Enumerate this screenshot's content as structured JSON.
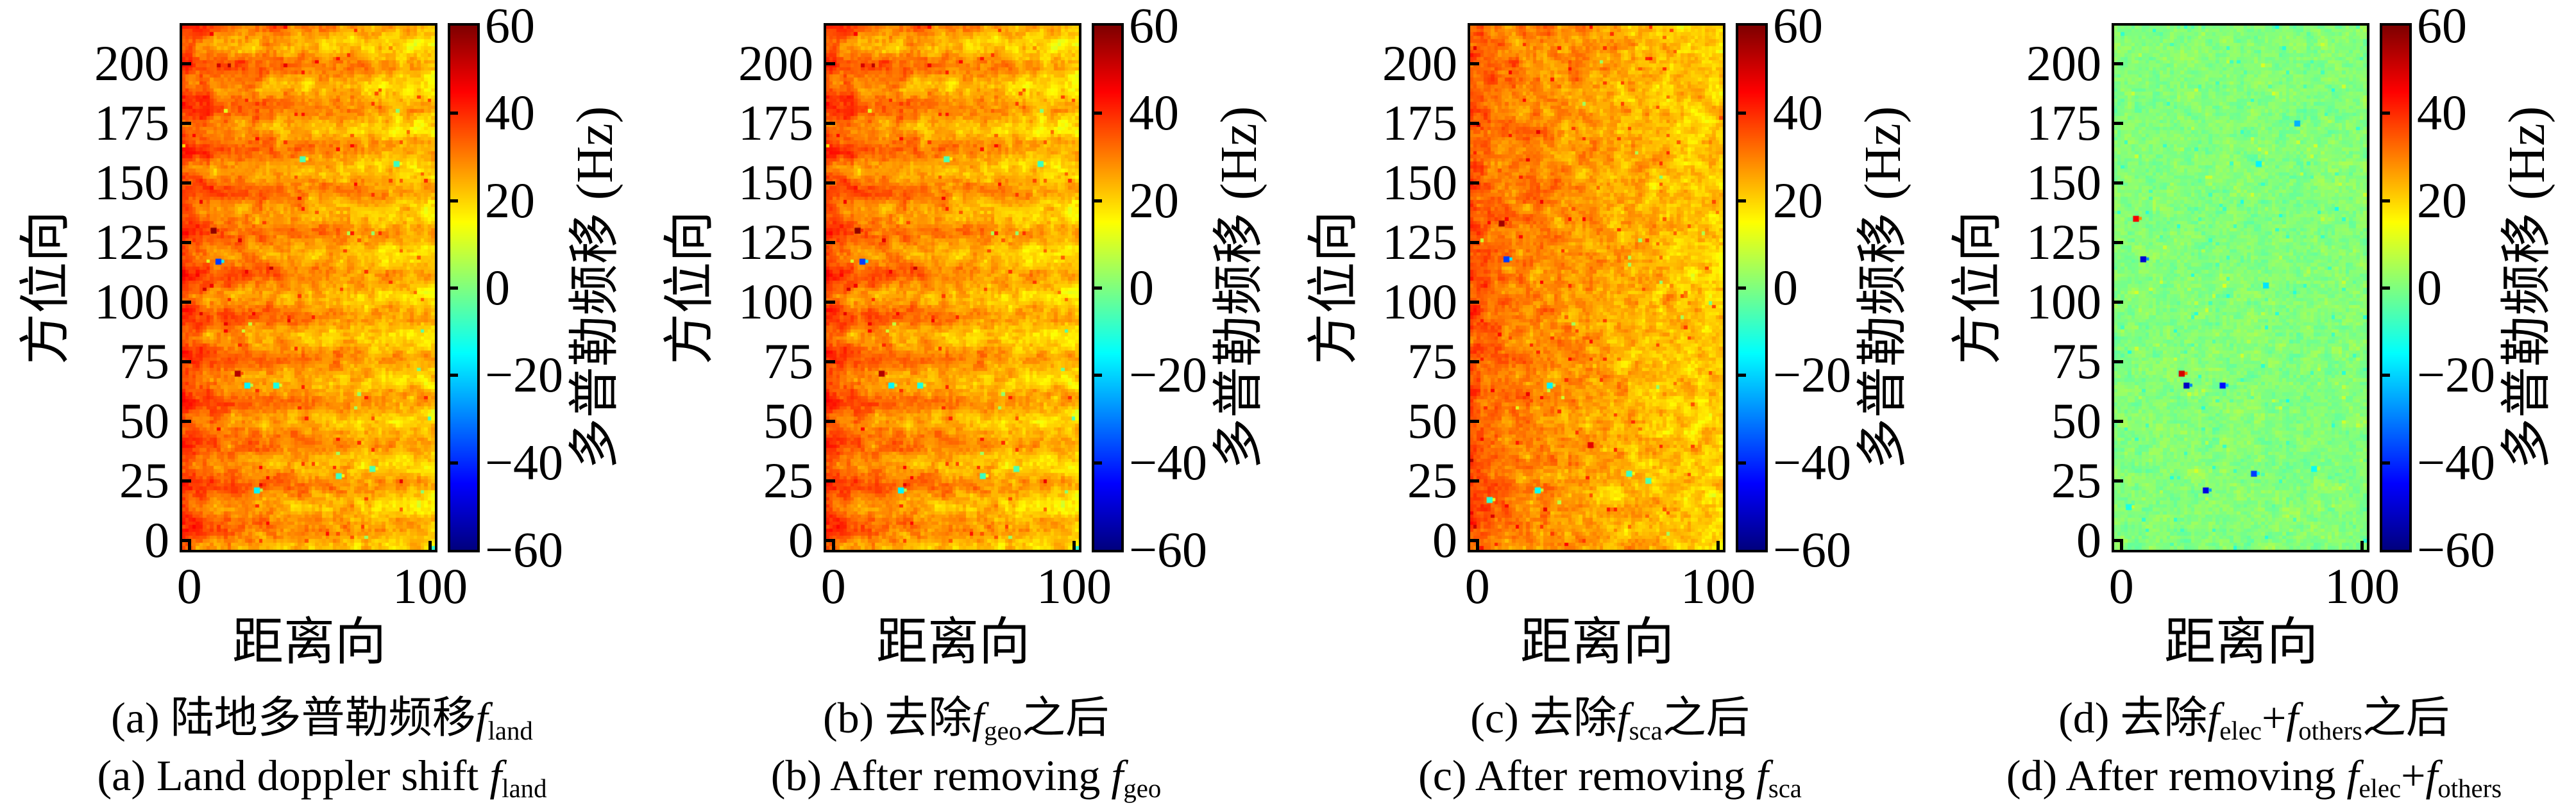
{
  "page": {
    "background": "#ffffff",
    "figure_type": "four-panel scientific heatmap figure"
  },
  "colors": {
    "axis": "#000000",
    "colormap": "jet",
    "colormap_ends": {
      "low": "#000080",
      "high": "#800000"
    }
  },
  "chart_data": [
    {
      "type": "heatmap",
      "panel": "a",
      "xlabel": "距离向",
      "ylabel": "方位向",
      "xticks": [
        0,
        100
      ],
      "yticks": [
        0,
        25,
        50,
        75,
        100,
        125,
        150,
        175,
        200
      ],
      "xlim": [
        -3,
        102
      ],
      "ylim": [
        -4,
        216
      ],
      "grid": false,
      "colorbar": {
        "label": "多普勒频移 (Hz)",
        "ticks": [
          60,
          40,
          20,
          0,
          -20,
          -40,
          -60
        ],
        "lim": [
          -60,
          60
        ],
        "colormap": "jet"
      },
      "caption_zh": [
        {
          "t": "(a) 陆地多普勒频移"
        },
        {
          "f": "f",
          "sub": "land"
        }
      ],
      "caption_en": [
        {
          "t": "(a) Land doppler shift "
        },
        {
          "f": "f",
          "sub": "land"
        }
      ],
      "field": {
        "description": "orange field ~+20..+40 Hz, redder on left edge, yellower on right, faint horizontal banding",
        "seed": 11,
        "mean_hz": 33,
        "gradient_hz": -12,
        "edge_hz": 5,
        "band_amp_hz": 3.5,
        "band_period_rows": 12,
        "noise_hz": 6.5,
        "spike_hi": 14,
        "spike_hi_p": 0.01,
        "spike_lo": -22,
        "spike_lo_p": 0.0015,
        "speckles": [
          {
            "x": 10,
            "y": 130,
            "v": 58
          },
          {
            "x": 12,
            "y": 117,
            "v": -38
          },
          {
            "x": 20,
            "y": 70,
            "v": 54
          },
          {
            "x": 24,
            "y": 65,
            "v": -16
          },
          {
            "x": 36,
            "y": 65,
            "v": -12
          },
          {
            "x": 28,
            "y": 21,
            "v": -16
          },
          {
            "x": 62,
            "y": 27,
            "v": -8
          },
          {
            "x": 76,
            "y": 30,
            "v": -6
          },
          {
            "x": 86,
            "y": 158,
            "v": -8
          },
          {
            "x": 47,
            "y": 160,
            "v": -6
          }
        ]
      }
    },
    {
      "type": "heatmap",
      "panel": "b",
      "xlabel": "距离向",
      "ylabel": "方位向",
      "xticks": [
        0,
        100
      ],
      "yticks": [
        0,
        25,
        50,
        75,
        100,
        125,
        150,
        175,
        200
      ],
      "xlim": [
        -3,
        102
      ],
      "ylim": [
        -4,
        216
      ],
      "grid": false,
      "colorbar": {
        "label": "多普勒频移 (Hz)",
        "ticks": [
          60,
          40,
          20,
          0,
          -20,
          -40,
          -60
        ],
        "lim": [
          -60,
          60
        ],
        "colormap": "jet"
      },
      "caption_zh": [
        {
          "t": "(b) 去除"
        },
        {
          "f": "f",
          "sub": "geo"
        },
        {
          "t": "之后"
        }
      ],
      "caption_en": [
        {
          "t": "(b) After removing "
        },
        {
          "f": "f",
          "sub": "geo"
        }
      ],
      "field": {
        "description": "nearly identical to panel a: orange ~+20..+40 Hz with banding",
        "seed": 11,
        "mean_hz": 32.5,
        "gradient_hz": -12,
        "edge_hz": 5,
        "band_amp_hz": 3.5,
        "band_period_rows": 12,
        "noise_hz": 6.5,
        "spike_hi": 14,
        "spike_hi_p": 0.01,
        "spike_lo": -22,
        "spike_lo_p": 0.0015,
        "speckles": [
          {
            "x": 10,
            "y": 130,
            "v": 58
          },
          {
            "x": 12,
            "y": 117,
            "v": -38
          },
          {
            "x": 20,
            "y": 70,
            "v": 54
          },
          {
            "x": 24,
            "y": 65,
            "v": -16
          },
          {
            "x": 36,
            "y": 65,
            "v": -12
          },
          {
            "x": 28,
            "y": 21,
            "v": -16
          },
          {
            "x": 62,
            "y": 27,
            "v": -8
          },
          {
            "x": 76,
            "y": 30,
            "v": -6
          },
          {
            "x": 86,
            "y": 158,
            "v": -8
          },
          {
            "x": 47,
            "y": 160,
            "v": -6
          }
        ]
      }
    },
    {
      "type": "heatmap",
      "panel": "c",
      "xlabel": "距离向",
      "ylabel": "方位向",
      "xticks": [
        0,
        100
      ],
      "yticks": [
        0,
        25,
        50,
        75,
        100,
        125,
        150,
        175,
        200
      ],
      "xlim": [
        -3,
        102
      ],
      "ylim": [
        -4,
        216
      ],
      "grid": false,
      "colorbar": {
        "label": "多普勒频移 (Hz)",
        "ticks": [
          60,
          40,
          20,
          0,
          -20,
          -40,
          -60
        ],
        "lim": [
          -60,
          60
        ],
        "colormap": "jet"
      },
      "caption_zh": [
        {
          "t": "(c) 去除"
        },
        {
          "f": "f",
          "sub": "sca"
        },
        {
          "t": "之后"
        }
      ],
      "caption_en": [
        {
          "t": "(c) After removing "
        },
        {
          "f": "f",
          "sub": "sca"
        }
      ],
      "field": {
        "description": "orange ~+20..+38 Hz, no banding, speckled, yellower toward right",
        "seed": 23,
        "mean_hz": 32,
        "gradient_hz": -12,
        "edge_hz": 4,
        "band_amp_hz": 0,
        "band_period_rows": 12,
        "noise_hz": 7,
        "spike_hi": 13,
        "spike_hi_p": 0.012,
        "spike_lo": -20,
        "spike_lo_p": 0.002,
        "speckles": [
          {
            "x": 10,
            "y": 133,
            "v": 56
          },
          {
            "x": 12,
            "y": 118,
            "v": -38
          },
          {
            "x": 30,
            "y": 65,
            "v": -16
          },
          {
            "x": 25,
            "y": 21,
            "v": -14
          },
          {
            "x": 63,
            "y": 28,
            "v": -8
          },
          {
            "x": 71,
            "y": 25,
            "v": -6
          },
          {
            "x": 5,
            "y": 17,
            "v": -10
          },
          {
            "x": 47,
            "y": 40,
            "v": 48
          }
        ]
      }
    },
    {
      "type": "heatmap",
      "panel": "d",
      "xlabel": "距离向",
      "ylabel": "方位向",
      "xticks": [
        0,
        100
      ],
      "yticks": [
        0,
        25,
        50,
        75,
        100,
        125,
        150,
        175,
        200
      ],
      "xlim": [
        -3,
        102
      ],
      "ylim": [
        -4,
        216
      ],
      "grid": false,
      "colorbar": {
        "label": "多普勒频移 (Hz)",
        "ticks": [
          60,
          40,
          20,
          0,
          -20,
          -40,
          -60
        ],
        "lim": [
          -60,
          60
        ],
        "colormap": "jet"
      },
      "caption_zh": [
        {
          "t": "(d) 去除"
        },
        {
          "f": "f",
          "sub": "elec"
        },
        {
          "t": "+"
        },
        {
          "f": "f",
          "sub": "others"
        },
        {
          "t": "之后"
        }
      ],
      "caption_en": [
        {
          "t": "(d) After removing "
        },
        {
          "f": "f",
          "sub": "elec"
        },
        {
          "t": "+"
        },
        {
          "f": "f",
          "sub": "others"
        }
      ],
      "field": {
        "description": "green residual field ~0 Hz with cyan/yellow mottling and isolated blue and red point targets",
        "seed": 37,
        "mean_hz": 0.5,
        "gradient_hz": 0,
        "edge_hz": 0,
        "band_amp_hz": 0,
        "band_period_rows": 12,
        "noise_hz": 3.4,
        "spike_hi": 7,
        "spike_hi_p": 0.008,
        "spike_lo": -9,
        "spike_lo_p": 0.01,
        "speckles": [
          {
            "x": 6,
            "y": 135,
            "v": 46
          },
          {
            "x": 9,
            "y": 118,
            "v": -50
          },
          {
            "x": 25,
            "y": 70,
            "v": 50
          },
          {
            "x": 27,
            "y": 65,
            "v": -52
          },
          {
            "x": 42,
            "y": 65,
            "v": -44
          },
          {
            "x": 35,
            "y": 21,
            "v": -48
          },
          {
            "x": 55,
            "y": 28,
            "v": -38
          },
          {
            "x": 73,
            "y": 175,
            "v": -24
          },
          {
            "x": 57,
            "y": 158,
            "v": -16
          },
          {
            "x": 80,
            "y": 30,
            "v": -14
          },
          {
            "x": 3,
            "y": 14,
            "v": -12
          },
          {
            "x": 60,
            "y": 107,
            "v": -18
          }
        ]
      }
    }
  ]
}
